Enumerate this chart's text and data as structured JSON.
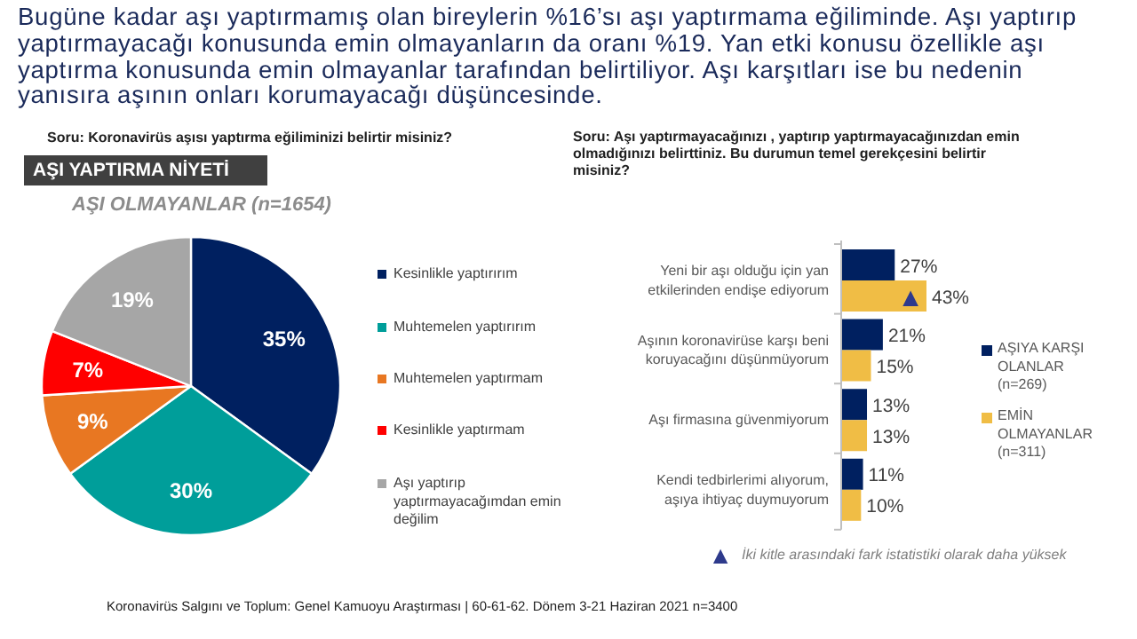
{
  "chart_data": [
    {
      "type": "pie",
      "title": "AŞI YAPTIRMA NİYETİ",
      "subtitle": "AŞI OLMAYANLAR (n=1654)",
      "categories": [
        "Kesinlikle yaptırırım",
        "Muhtemelen yaptırırım",
        "Muhtemelen yaptırmam",
        "Kesinlikle yaptırmam",
        "Aşı yaptırıp yaptırmayacağımdan emin değilim"
      ],
      "values": [
        35,
        30,
        9,
        7,
        19
      ],
      "colors": [
        "#002060",
        "#009e9a",
        "#e87722",
        "#ff0000",
        "#a6a6a6"
      ],
      "value_labels": [
        "35%",
        "30%",
        "9%",
        "7%",
        "19%"
      ],
      "legend": "right",
      "annotations": [
        "Bugüne kadar aşı yaptırmamış olan bireylerin %16’sı aşı yaptırmama eğiliminde. Aşı yaptırıp yaptırmayacağı konusunda emin olmayanların da oranı %19. Yan etki konusu özellikle aşı yaptırma konusunda emin olmayanlar tarafından belirtiliyor. Aşı karşıtları ise bu nedenin yanısıra aşının onları korumayacağı düşüncesinde.",
        "Soru: Koronavirüs aşısı yaptırma eğiliminizi belirtir misiniz?",
        "Koronavirüs Salgını ve Toplum: Genel Kamuoyu Araştırması | 60-61-62. Dönem 3-21 Haziran 2021 n=3400"
      ]
    },
    {
      "type": "bar",
      "orientation": "horizontal",
      "categories": [
        "Yeni bir aşı olduğu için yan etkilerinden endişe ediyorum",
        "Aşının koronavirüse karşı beni koruyacağını düşünmüyorum",
        "Aşı firmasına güvenmiyorum",
        "Kendi tedbirlerimi alıyorum, aşıya ihtiyaç duymuyorum"
      ],
      "series": [
        {
          "name": "AŞIYA KARŞI OLANLAR (n=269)",
          "color": "#002060",
          "values": [
            27,
            21,
            13,
            11
          ],
          "value_labels": [
            "27%",
            "21%",
            "13%",
            "11%"
          ]
        },
        {
          "name": "EMİN OLMAYANLAR (n=311)",
          "color": "#f0bd45",
          "values": [
            43,
            15,
            13,
            10
          ],
          "value_labels": [
            "43%",
            "15%",
            "13%",
            "10%"
          ]
        }
      ],
      "legend": "right",
      "annotations": [
        "Soru: Aşı yaptırmayacağınızı , yaptırıp yaptırmayacağınızdan emin olmadığınızı belirttiniz. Bu durumun temel gerekçesini belirtir misiniz?",
        {
          "text": "▲",
          "x": 35,
          "y": "Yeni bir aşı olduğu için yan etkilerinden endişe ediyorum"
        },
        "▲ İki kitle arasındaki fark istatistiki olarak daha yüksek"
      ]
    }
  ]
}
